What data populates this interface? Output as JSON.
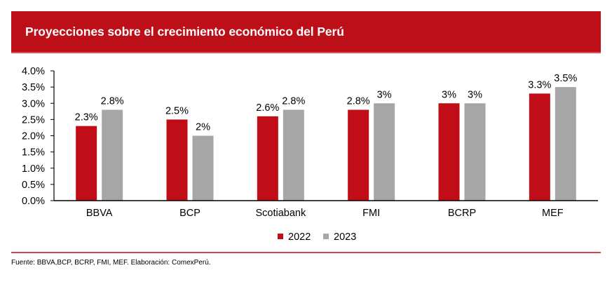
{
  "header": {
    "title": "Proyecciones sobre el crecimiento económico del Perú"
  },
  "colors": {
    "banner": "#bd0f17",
    "series_2022": "#c00d17",
    "series_2023": "#a6a6a6",
    "divider": "#d94550"
  },
  "chart_data": {
    "type": "bar",
    "title": "Proyecciones sobre el crecimiento económico del Perú",
    "xlabel": "",
    "ylabel": "",
    "categories": [
      "BBVA",
      "BCP",
      "Scotiabank",
      "FMI",
      "BCRP",
      "MEF"
    ],
    "series": [
      {
        "name": "2022",
        "color": "#c00d17",
        "values": [
          2.3,
          2.5,
          2.6,
          2.8,
          3.0,
          3.3
        ],
        "labels": [
          "2.3%",
          "2.5%",
          "2.6%",
          "2.8%",
          "3%",
          "3.3%"
        ]
      },
      {
        "name": "2023",
        "color": "#a6a6a6",
        "values": [
          2.8,
          2.0,
          2.8,
          3.0,
          3.0,
          3.5
        ],
        "labels": [
          "2.8%",
          "2%",
          "2.8%",
          "3%",
          "3%",
          "3.5%"
        ]
      }
    ],
    "ylim": [
      0,
      4.0
    ],
    "yticks": [
      0,
      0.5,
      1.0,
      1.5,
      2.0,
      2.5,
      3.0,
      3.5,
      4.0
    ],
    "ytick_labels": [
      "0.0%",
      "0.5%",
      "1.0%",
      "1.5%",
      "2.0%",
      "2.5%",
      "3.0%",
      "3.5%",
      "4.0%"
    ],
    "grid": false,
    "legend": {
      "position": "bottom-center",
      "entries": [
        "2022",
        "2023"
      ]
    }
  },
  "footer": {
    "source": "Fuente: BBVA,BCP, BCRP, FMI, MEF. Elaboración: ComexPerú."
  }
}
